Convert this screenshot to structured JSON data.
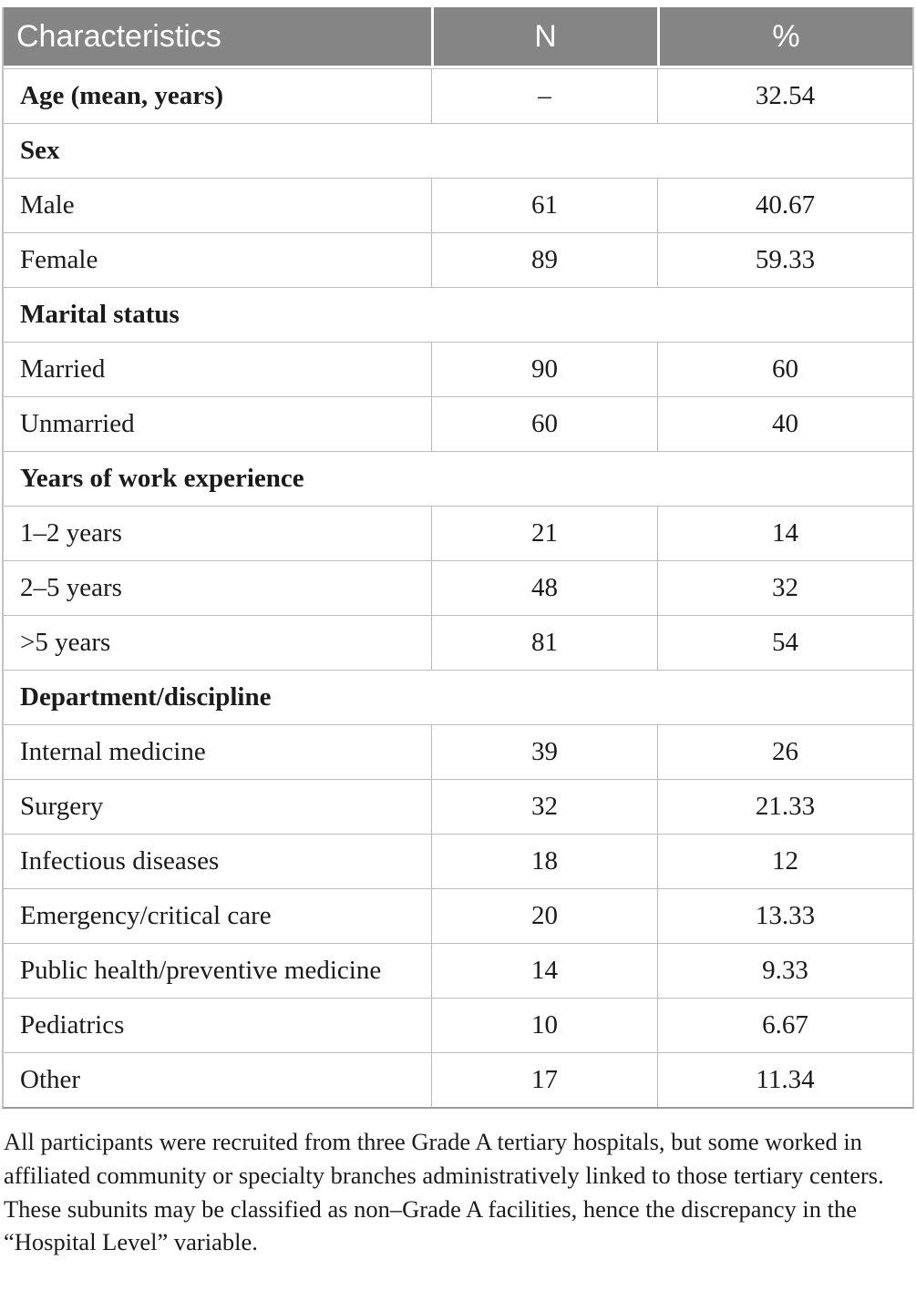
{
  "colors": {
    "header_bg": "#858585",
    "header_text": "#ffffff",
    "grid_border": "#bdbdbd",
    "body_text": "#1b1b1b"
  },
  "table": {
    "columns": [
      "Characteristics",
      "N",
      "%"
    ],
    "rows": [
      {
        "type": "data",
        "bold": true,
        "label": "Age (mean, years)",
        "n": "–",
        "pct": "32.54"
      },
      {
        "type": "section",
        "label": "Sex"
      },
      {
        "type": "data",
        "bold": false,
        "label": "Male",
        "n": "61",
        "pct": "40.67"
      },
      {
        "type": "data",
        "bold": false,
        "label": "Female",
        "n": "89",
        "pct": "59.33"
      },
      {
        "type": "section",
        "label": "Marital status"
      },
      {
        "type": "data",
        "bold": false,
        "label": "Married",
        "n": "90",
        "pct": "60"
      },
      {
        "type": "data",
        "bold": false,
        "label": "Unmarried",
        "n": "60",
        "pct": "40"
      },
      {
        "type": "section",
        "label": "Years of work experience"
      },
      {
        "type": "data",
        "bold": false,
        "label": "1–2 years",
        "n": "21",
        "pct": "14"
      },
      {
        "type": "data",
        "bold": false,
        "label": "2–5 years",
        "n": "48",
        "pct": "32"
      },
      {
        "type": "data",
        "bold": false,
        "label": ">5 years",
        "n": "81",
        "pct": "54"
      },
      {
        "type": "section",
        "label": "Department/discipline"
      },
      {
        "type": "data",
        "bold": false,
        "label": "Internal medicine",
        "n": "39",
        "pct": "26"
      },
      {
        "type": "data",
        "bold": false,
        "label": "Surgery",
        "n": "32",
        "pct": "21.33"
      },
      {
        "type": "data",
        "bold": false,
        "label": "Infectious diseases",
        "n": "18",
        "pct": "12"
      },
      {
        "type": "data",
        "bold": false,
        "label": "Emergency/critical care",
        "n": "20",
        "pct": "13.33"
      },
      {
        "type": "data",
        "bold": false,
        "label": "Public health/preventive medicine",
        "n": "14",
        "pct": "9.33"
      },
      {
        "type": "data",
        "bold": false,
        "label": "Pediatrics",
        "n": "10",
        "pct": "6.67"
      },
      {
        "type": "data",
        "bold": false,
        "label": "Other",
        "n": "17",
        "pct": "11.34"
      }
    ],
    "footnote": "All participants were recruited from three Grade A tertiary hospitals, but some worked in affiliated community or specialty branches administratively linked to those tertiary centers. These subunits may be classified as non–Grade A facilities, hence the discrepancy in the “Hospital Level” variable."
  }
}
